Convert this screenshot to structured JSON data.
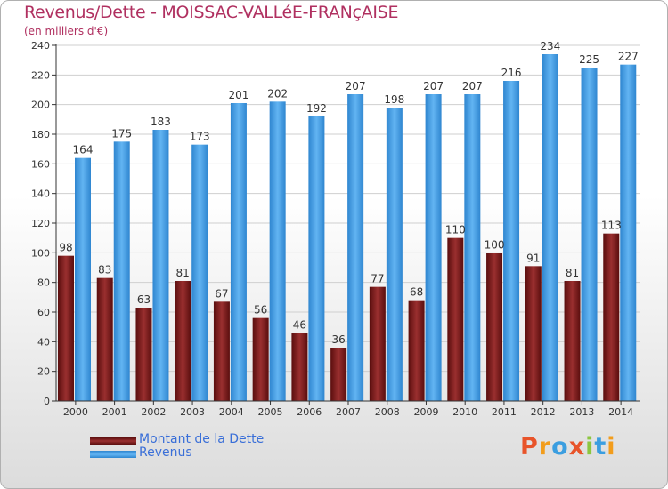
{
  "title": "Revenus/Dette - MOISSAC-VALLéE-FRANçAISE",
  "subtitle": "(en milliers d'€)",
  "logo": {
    "text": "Proxiti",
    "letters": [
      {
        "ch": "P",
        "color": "#e8542a"
      },
      {
        "ch": "r",
        "color": "#f29d1c"
      },
      {
        "ch": "o",
        "color": "#3b9ee0"
      },
      {
        "ch": "x",
        "color": "#e8542a"
      },
      {
        "ch": "i",
        "color": "#8cc63f"
      },
      {
        "ch": "t",
        "color": "#3b9ee0"
      },
      {
        "ch": "i",
        "color": "#f29d1c"
      }
    ]
  },
  "chart_data": {
    "type": "bar",
    "title": "Revenus/Dette - MOISSAC-VALLéE-FRANçAISE",
    "subtitle": "(en milliers d'€)",
    "categories": [
      "2000",
      "2001",
      "2002",
      "2003",
      "2004",
      "2005",
      "2006",
      "2007",
      "2008",
      "2009",
      "2010",
      "2011",
      "2012",
      "2013",
      "2014"
    ],
    "series": [
      {
        "name": "Montant de la Dette",
        "color": "#7a1a1a",
        "values": [
          98,
          83,
          63,
          81,
          67,
          56,
          46,
          36,
          77,
          68,
          110,
          100,
          91,
          81,
          113
        ]
      },
      {
        "name": "Revenus",
        "color": "#3d9ae0",
        "values": [
          164,
          175,
          183,
          173,
          201,
          202,
          192,
          207,
          198,
          207,
          207,
          216,
          234,
          225,
          227
        ]
      }
    ],
    "ylim": [
      0,
      240
    ],
    "yticks": [
      0,
      20,
      40,
      60,
      80,
      100,
      120,
      140,
      160,
      180,
      200,
      220,
      240
    ],
    "grid": true,
    "legend": "bottom-left"
  }
}
